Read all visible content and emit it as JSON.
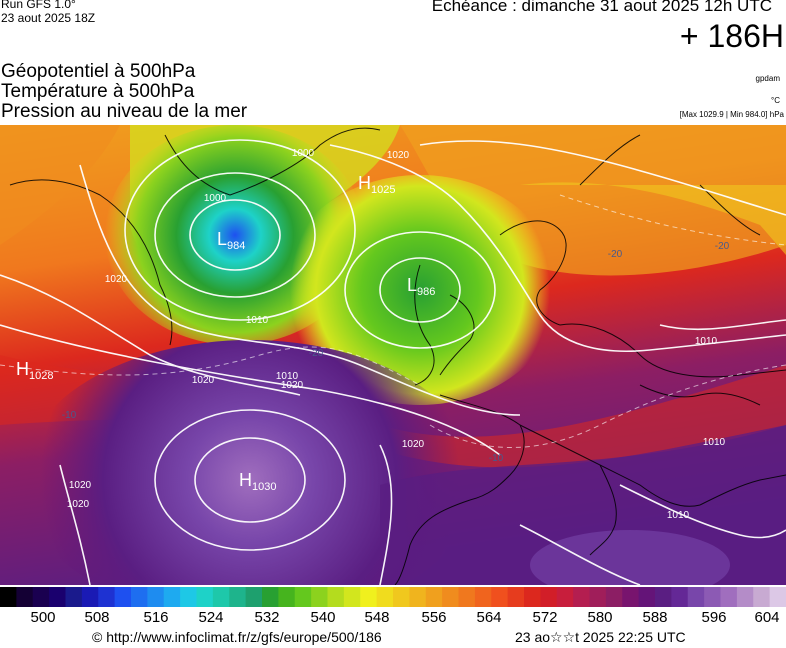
{
  "header": {
    "run": "Run GFS 1.0°",
    "run_date": "23 aout 2025 18Z",
    "valid": "Echéance : dimanche 31 aout 2025 12h UTC",
    "lead": "+ 186H"
  },
  "params": [
    "Géopotentiel à 500hPa",
    "Température à 500hPa",
    "Pression au niveau de la mer"
  ],
  "units": {
    "geopotential": "gpdam",
    "temperature": "°C",
    "minmax": "[Max 1029.9 | Min 984.0] hPa"
  },
  "pressure_centers": [
    {
      "type": "L",
      "value": "984"
    },
    {
      "type": "L",
      "value": "986"
    },
    {
      "type": "H",
      "value": "1025"
    },
    {
      "type": "H",
      "value": "1028"
    },
    {
      "type": "H",
      "value": "1030"
    }
  ],
  "isobar_labels": [
    "1000",
    "1000",
    "1020",
    "1010",
    "1020",
    "1020",
    "1020",
    "1020",
    "1010",
    "1010",
    "1010",
    "1020",
    "1010",
    "1020"
  ],
  "temp_labels": [
    "-20",
    "-20",
    "-10",
    "-10",
    "-20"
  ],
  "colorbar": {
    "ticks": [
      "500",
      "508",
      "516",
      "524",
      "532",
      "540",
      "548",
      "556",
      "564",
      "572",
      "580",
      "588",
      "596",
      "604"
    ],
    "colors": [
      "#000000",
      "#140034",
      "#1a0050",
      "#1a006e",
      "#1a1a8c",
      "#1a1ab4",
      "#1e32d2",
      "#1e50f0",
      "#1e6ef0",
      "#1e8cf0",
      "#1eaaf0",
      "#1ec8e6",
      "#1ed2c8",
      "#1ec8aa",
      "#1eb48c",
      "#1ea06e",
      "#28a032",
      "#46b41e",
      "#64c81e",
      "#8cd21e",
      "#b4dc1e",
      "#d2e61e",
      "#f0f01e",
      "#f0dc1e",
      "#f0c81e",
      "#f0b41e",
      "#f0a01e",
      "#f08c1e",
      "#f0781e",
      "#f0641e",
      "#f0501e",
      "#e63c1e",
      "#dc281e",
      "#d21e28",
      "#c81e3c",
      "#b41e50",
      "#a01e5a",
      "#8c1e64",
      "#78146e",
      "#641478",
      "#5a1e82",
      "#642896",
      "#7846aa",
      "#8c5ab4",
      "#a06ebe",
      "#b48cc8",
      "#c8aad2",
      "#dcc8e6"
    ]
  },
  "footer": {
    "copyright": "© http://www.infoclimat.fr/z/gfs/europe/500/186",
    "generated": "23 ao☆☆t 2025 22:25 UTC"
  }
}
